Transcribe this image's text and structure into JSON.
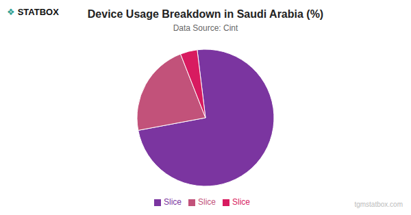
{
  "chart_data": {
    "type": "pie",
    "title": "Device Usage Breakdown in Saudi Arabia (%)",
    "subtitle": "Data Source: Cint",
    "categories": [
      "Slice",
      "Slice",
      "Slice"
    ],
    "values": [
      74,
      22,
      4
    ],
    "colors": [
      "#7b35a0",
      "#c2527a",
      "#d81b60"
    ],
    "legend": "bottom",
    "annotations": [
      "❖",
      "STATBOX",
      "tgmstatbox.com"
    ]
  }
}
